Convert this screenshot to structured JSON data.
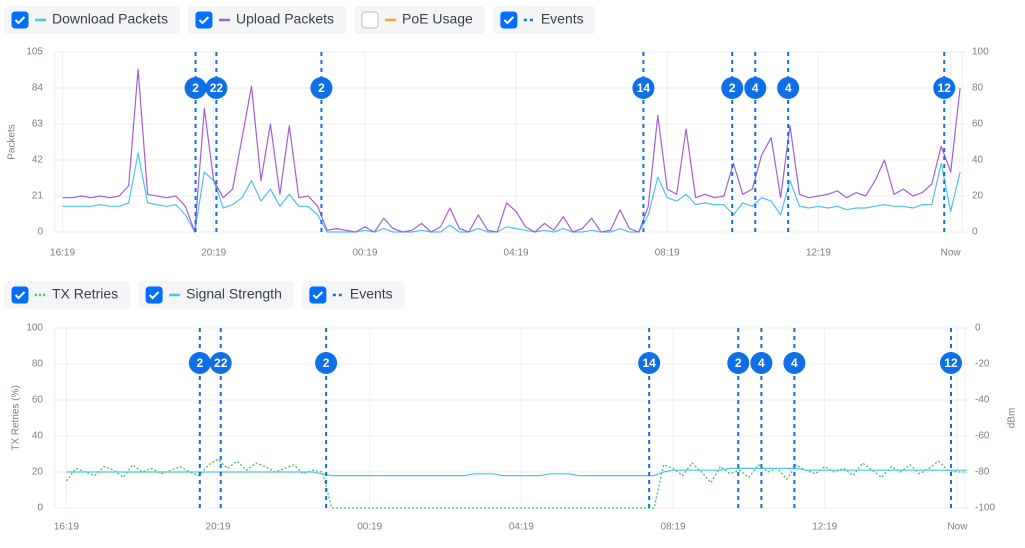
{
  "chart_data": [
    {
      "type": "line",
      "ylabel": "Packets",
      "grid": true,
      "x": [
        0,
        0.25,
        0.5,
        0.75,
        1,
        1.25,
        1.5,
        1.75,
        2,
        2.25,
        2.5,
        2.75,
        3,
        3.25,
        3.5,
        3.75,
        4,
        4.25,
        4.5,
        4.75,
        5,
        5.25,
        5.5,
        5.75,
        6,
        6.25,
        6.5,
        6.75,
        7,
        7.25,
        7.5,
        7.75,
        8,
        8.25,
        8.5,
        8.75,
        9,
        9.25,
        9.5,
        9.75,
        10,
        10.25,
        10.5,
        10.75,
        11,
        11.25,
        11.5,
        11.75,
        12,
        12.25,
        12.5,
        12.75,
        13,
        13.25,
        13.5,
        13.75,
        14,
        14.25,
        14.5,
        14.75,
        15,
        15.25,
        15.5,
        15.75,
        16,
        16.25,
        16.5,
        16.75,
        17,
        17.25,
        17.5,
        17.75,
        18,
        18.25,
        18.5,
        18.75,
        19,
        19.25,
        19.5,
        19.75,
        20,
        20.25,
        20.5,
        20.75,
        21,
        21.25,
        21.5,
        21.75,
        22,
        22.25,
        22.5,
        22.75,
        23,
        23.25,
        23.5,
        23.75
      ],
      "xlim": [
        -0.2,
        23.8
      ],
      "xticks": [
        {
          "value": 0,
          "label": "16:19"
        },
        {
          "value": 4,
          "label": "20:19"
        },
        {
          "value": 8,
          "label": "00:19"
        },
        {
          "value": 12,
          "label": "04:19"
        },
        {
          "value": 16,
          "label": "08:19"
        },
        {
          "value": 20,
          "label": "12:19"
        },
        {
          "value": 23.5,
          "label": "Now"
        }
      ],
      "ylim": [
        0,
        105
      ],
      "yticks": [
        0,
        21,
        42,
        63,
        84,
        105
      ],
      "y2lim": [
        0,
        100
      ],
      "y2ticks": [
        0,
        20,
        40,
        60,
        80,
        100
      ],
      "series": [
        {
          "name": "Download Packets",
          "color": "#4fc3e8",
          "checked": true,
          "dash": "solid",
          "values": [
            15,
            15,
            15,
            15,
            16,
            15,
            15,
            17,
            46,
            17,
            16,
            15,
            16,
            10,
            0,
            35,
            30,
            14,
            16,
            20,
            30,
            18,
            25,
            15,
            22,
            15,
            15,
            10,
            0,
            0,
            0,
            0,
            1,
            0,
            2,
            0,
            0,
            0,
            1,
            0,
            0,
            4,
            0,
            0,
            2,
            0,
            0,
            3,
            2,
            1,
            0,
            1,
            0,
            2,
            0,
            0,
            1,
            0,
            0,
            2,
            0,
            0,
            10,
            32,
            20,
            18,
            22,
            16,
            17,
            16,
            16,
            10,
            17,
            15,
            20,
            18,
            10,
            30,
            15,
            14,
            15,
            14,
            15,
            13,
            14,
            14,
            15,
            16,
            15,
            15,
            14,
            16,
            16,
            40,
            12,
            35
          ]
        },
        {
          "name": "Upload Packets",
          "color": "#a45fd6",
          "checked": true,
          "dash": "solid",
          "values": [
            20,
            20,
            21,
            20,
            21,
            20,
            21,
            27,
            95,
            22,
            21,
            20,
            21,
            15,
            0,
            72,
            30,
            20,
            25,
            55,
            85,
            30,
            63,
            22,
            62,
            20,
            21,
            15,
            1,
            2,
            1,
            0,
            3,
            0,
            8,
            2,
            0,
            1,
            5,
            0,
            3,
            14,
            2,
            0,
            10,
            1,
            0,
            17,
            12,
            3,
            0,
            5,
            1,
            9,
            0,
            2,
            8,
            0,
            1,
            13,
            2,
            0,
            15,
            68,
            25,
            22,
            60,
            20,
            22,
            20,
            21,
            40,
            22,
            25,
            45,
            55,
            20,
            62,
            22,
            20,
            21,
            22,
            24,
            20,
            23,
            21,
            30,
            42,
            22,
            25,
            21,
            23,
            28,
            50,
            35,
            84
          ]
        },
        {
          "name": "PoE Usage",
          "color": "#f5a623",
          "checked": false,
          "dash": "solid"
        }
      ],
      "events": {
        "name": "Events",
        "color": "#0f6fe6",
        "checked": true,
        "x": [
          3.52,
          4.07,
          6.85,
          15.37,
          17.72,
          18.33,
          19.2,
          23.33
        ],
        "counts": [
          2,
          22,
          2,
          14,
          2,
          4,
          4,
          12
        ]
      }
    },
    {
      "type": "line",
      "ylabel": "TX Retries (%)",
      "y2label": "dBm",
      "grid": true,
      "x": [
        0,
        0.25,
        0.5,
        0.75,
        1,
        1.25,
        1.5,
        1.75,
        2,
        2.25,
        2.5,
        2.75,
        3,
        3.25,
        3.5,
        3.75,
        4,
        4.25,
        4.5,
        4.75,
        5,
        5.25,
        5.5,
        5.75,
        6,
        6.25,
        6.5,
        6.75,
        7,
        7.25,
        7.5,
        7.75,
        8,
        8.25,
        8.5,
        8.75,
        9,
        9.25,
        9.5,
        9.75,
        10,
        10.25,
        10.5,
        10.75,
        11,
        11.25,
        11.5,
        11.75,
        12,
        12.25,
        12.5,
        12.75,
        13,
        13.25,
        13.5,
        13.75,
        14,
        14.25,
        14.5,
        14.75,
        15,
        15.25,
        15.5,
        15.75,
        16,
        16.25,
        16.5,
        16.75,
        17,
        17.25,
        17.5,
        17.75,
        18,
        18.25,
        18.5,
        18.75,
        19,
        19.25,
        19.5,
        19.75,
        20,
        20.25,
        20.5,
        20.75,
        21,
        21.25,
        21.5,
        21.75,
        22,
        22.25,
        22.5,
        22.75,
        23,
        23.25,
        23.5,
        23.75
      ],
      "xlim": [
        -0.3,
        23.7
      ],
      "xticks": [
        {
          "value": 0,
          "label": "16:19"
        },
        {
          "value": 4,
          "label": "20:19"
        },
        {
          "value": 8,
          "label": "00:19"
        },
        {
          "value": 12,
          "label": "04:19"
        },
        {
          "value": 16,
          "label": "08:19"
        },
        {
          "value": 20,
          "label": "12:19"
        },
        {
          "value": 23.5,
          "label": "Now"
        }
      ],
      "ylim": [
        0,
        100
      ],
      "yticks": [
        0,
        20,
        40,
        60,
        80,
        100
      ],
      "y2lim": [
        -100,
        0
      ],
      "y2ticks": [
        -100,
        -80,
        -60,
        -40,
        -20,
        0
      ],
      "series": [
        {
          "name": "TX Retries",
          "color": "#3cc95c",
          "checked": true,
          "dash": "dotted",
          "values": [
            15,
            22,
            20,
            18,
            23,
            21,
            17,
            24,
            20,
            22,
            19,
            21,
            23,
            20,
            18,
            24,
            27,
            22,
            26,
            21,
            25,
            23,
            20,
            22,
            24,
            19,
            21,
            20,
            0,
            0,
            0,
            0,
            0,
            0,
            0,
            0,
            0,
            0,
            0,
            0,
            0,
            0,
            0,
            0,
            0,
            0,
            0,
            0,
            0,
            0,
            0,
            0,
            0,
            0,
            0,
            0,
            0,
            0,
            0,
            0,
            0,
            0,
            0,
            24,
            22,
            18,
            25,
            20,
            14,
            23,
            19,
            21,
            17,
            24,
            20,
            22,
            16,
            24,
            21,
            19,
            23,
            20,
            22,
            18,
            25,
            21,
            17,
            23,
            20,
            24,
            19,
            22,
            26,
            21,
            20,
            20
          ]
        },
        {
          "name": "Signal Strength",
          "color": "#4fc3e8",
          "checked": true,
          "dash": "solid",
          "axis": "y2",
          "values": [
            -80,
            -80,
            -80,
            -80,
            -80,
            -80,
            -80,
            -80,
            -80,
            -80,
            -80,
            -80,
            -80,
            -80,
            -80,
            -80,
            -80,
            -80,
            -80,
            -80,
            -80,
            -80,
            -80,
            -80,
            -80,
            -80,
            -80,
            -81,
            -82,
            -82,
            -82,
            -82,
            -82,
            -82,
            -82,
            -82,
            -82,
            -82,
            -82,
            -82,
            -82,
            -82,
            -82,
            -81,
            -81,
            -81,
            -82,
            -82,
            -82,
            -82,
            -82,
            -81,
            -81,
            -81,
            -82,
            -82,
            -82,
            -82,
            -82,
            -82,
            -82,
            -82,
            -82,
            -80,
            -79,
            -79,
            -79,
            -79,
            -79,
            -79,
            -78,
            -78,
            -78,
            -78,
            -78,
            -78,
            -78,
            -78,
            -79,
            -79,
            -79,
            -79,
            -79,
            -79,
            -79,
            -79,
            -79,
            -79,
            -79,
            -79,
            -79,
            -79,
            -79,
            -79,
            -79,
            -79
          ]
        }
      ],
      "events": {
        "name": "Events",
        "color": "#0f6fe6",
        "checked": true,
        "x": [
          3.52,
          4.07,
          6.85,
          15.37,
          17.72,
          18.33,
          19.2,
          23.33
        ],
        "counts": [
          2,
          22,
          2,
          14,
          2,
          4,
          4,
          12
        ]
      }
    }
  ]
}
